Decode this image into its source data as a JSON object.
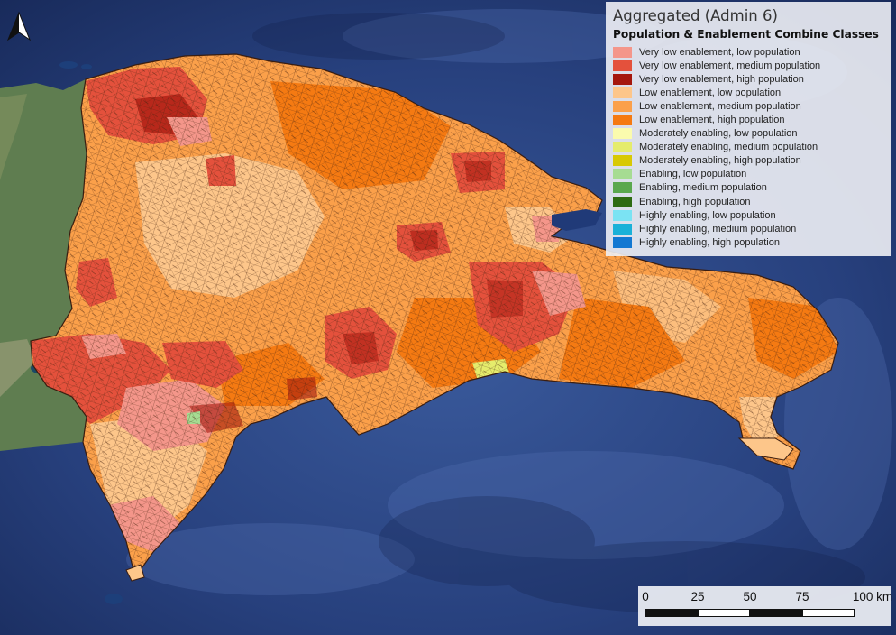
{
  "legend": {
    "title": "Aggregated (Admin 6)",
    "subtitle": "Population & Enablement Combine Classes",
    "items": [
      {
        "label": "Very low enablement, low population",
        "color": "#f4968a"
      },
      {
        "label": "Very low enablement, medium population",
        "color": "#e4513c"
      },
      {
        "label": "Very low enablement, high population",
        "color": "#a5170d"
      },
      {
        "label": "Low enablement, low population",
        "color": "#fdc68a"
      },
      {
        "label": "Low enablement, medium population",
        "color": "#fba04a"
      },
      {
        "label": "Low enablement, high population",
        "color": "#f57a12"
      },
      {
        "label": "Moderately enabling, low population",
        "color": "#fbfbae"
      },
      {
        "label": "Moderately enabling, medium population",
        "color": "#e5ec6c"
      },
      {
        "label": "Moderately enabling, high population",
        "color": "#d8c904"
      },
      {
        "label": "Enabling, low population",
        "color": "#a6dc92"
      },
      {
        "label": "Enabling, medium population",
        "color": "#5aa84e"
      },
      {
        "label": "Enabling, high population",
        "color": "#2e6b12"
      },
      {
        "label": "Highly enabling, low population",
        "color": "#7be3f3"
      },
      {
        "label": "Highly enabling, medium population",
        "color": "#1ab1d8"
      },
      {
        "label": "Highly enabling, high population",
        "color": "#1378d2"
      }
    ]
  },
  "scalebar": {
    "labels": [
      "0",
      "25",
      "50",
      "75",
      "100 km"
    ],
    "unit": "km"
  },
  "north_arrow": {
    "icon": "north-arrow-icon"
  },
  "colors": {
    "ocean_deep": "#1e2f63",
    "ocean_shallow": "#2f4e8f",
    "haiti_land": "#5d7a52",
    "boundary": "#3a1d10"
  }
}
